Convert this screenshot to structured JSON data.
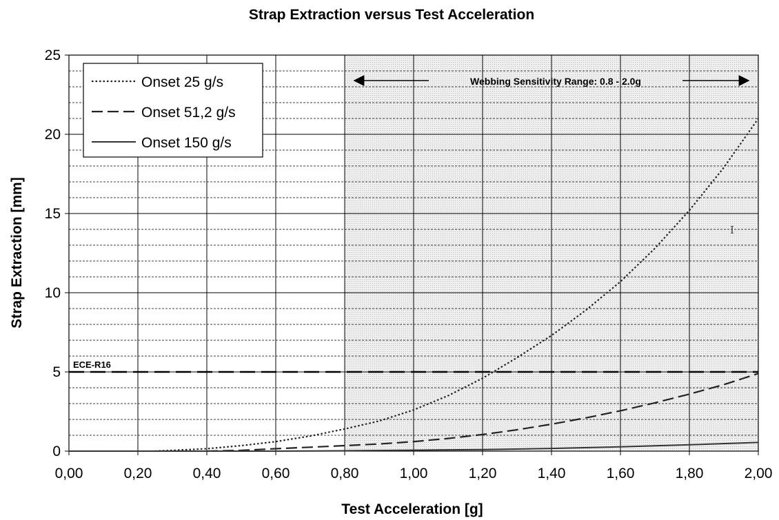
{
  "chart_data": {
    "type": "line",
    "title": "Strap Extraction versus Test Acceleration",
    "xlabel": "Test Acceleration [g]",
    "ylabel": "Strap Extraction [mm]",
    "xlim": [
      0,
      2
    ],
    "ylim": [
      0,
      25
    ],
    "x_ticks": [
      "0,00",
      "0,20",
      "0,40",
      "0,60",
      "0,80",
      "1,00",
      "1,20",
      "1,40",
      "1,60",
      "1,80",
      "2,00"
    ],
    "y_ticks": [
      "0",
      "5",
      "10",
      "15",
      "20",
      "25"
    ],
    "x_tick_values": [
      0,
      0.2,
      0.4,
      0.6,
      0.8,
      1.0,
      1.2,
      1.4,
      1.6,
      1.8,
      2.0
    ],
    "y_tick_values": [
      0,
      5,
      10,
      15,
      20,
      25
    ],
    "minor_y_step": 1,
    "grid": true,
    "legend_position": "top-left",
    "shaded_region": {
      "x_from": 0.8,
      "x_to": 2.0,
      "label": "Webbing Sensitivity Range: 0.8 - 2.0g"
    },
    "reference_line": {
      "y": 5,
      "label": "ECE-R16"
    },
    "series": [
      {
        "name": "Onset 25 g/s",
        "style": "dotted",
        "x": [
          0.25,
          0.3,
          0.4,
          0.5,
          0.6,
          0.7,
          0.8,
          0.9,
          1.0,
          1.1,
          1.2,
          1.3,
          1.4,
          1.5,
          1.6,
          1.7,
          1.8,
          1.9,
          2.0
        ],
        "y": [
          0,
          0.05,
          0.15,
          0.35,
          0.6,
          0.95,
          1.4,
          1.9,
          2.6,
          3.5,
          4.6,
          5.9,
          7.3,
          8.9,
          10.7,
          12.8,
          15.2,
          17.9,
          21.0
        ]
      },
      {
        "name": "Onset 51,2 g/s",
        "style": "dashed",
        "x": [
          0.4,
          0.5,
          0.6,
          0.7,
          0.8,
          0.9,
          1.0,
          1.1,
          1.2,
          1.3,
          1.4,
          1.5,
          1.6,
          1.7,
          1.8,
          1.9,
          2.0
        ],
        "y": [
          0,
          0.05,
          0.15,
          0.25,
          0.35,
          0.45,
          0.6,
          0.8,
          1.05,
          1.35,
          1.7,
          2.1,
          2.55,
          3.05,
          3.6,
          4.2,
          4.9
        ]
      },
      {
        "name": "Onset 150 g/s",
        "style": "solid",
        "x": [
          0.0,
          0.6,
          0.8,
          1.0,
          1.2,
          1.4,
          1.6,
          1.8,
          2.0
        ],
        "y": [
          0.0,
          0.0,
          0.02,
          0.06,
          0.1,
          0.17,
          0.27,
          0.4,
          0.55
        ]
      }
    ],
    "annotations": [
      "I"
    ]
  }
}
